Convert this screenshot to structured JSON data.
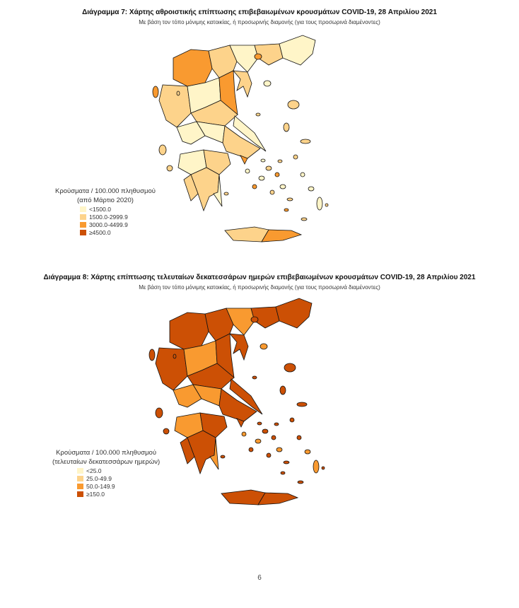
{
  "figure7": {
    "title": "Διάγραμμα 7: Χάρτης αθροιστικής επίπτωσης επιβεβαιωμένων κρουσμάτων COVID-19, 28 Απριλίου 2021",
    "subtitle": "Με βάση τον τόπο μόνιμης κατοικίας, ή προσωρινής διαμονής (για τους προσωρινά διαμένοντες)",
    "legend": {
      "title": "Κρούσματα / 100.000 πληθυσμού",
      "subtitle": "(από Μάρτιο 2020)",
      "items": [
        {
          "label": "<1500.0",
          "color": "#fff5c8"
        },
        {
          "label": "1500.0-2999.9",
          "color": "#fdd38b"
        },
        {
          "label": "3000.0-4499.9",
          "color": "#f99a30"
        },
        {
          "label": "≥4500.0",
          "color": "#cc5005"
        }
      ]
    },
    "region_levels": [
      2,
      1,
      0,
      1,
      0,
      1,
      1,
      0,
      2,
      1,
      0,
      0,
      1,
      0,
      0,
      1,
      1,
      1,
      0,
      1,
      2,
      2
    ]
  },
  "figure8": {
    "title": "Διάγραμμα 8: Χάρτης επίπτωσης τελευταίων δεκατεσσάρων ημερών επιβεβαιωμένων κρουσμάτων COVID-19, 28 Απριλίου 2021",
    "subtitle": "Με βάση τον τόπο μόνιμης κατοικίας, ή προσωρινής διαμονής (για τους προσωρινά διαμένοντες)",
    "legend": {
      "title": "Κρούσματα / 100.000 πληθυσμού",
      "subtitle": "(τελευταίων δεκατεσσάρων ημερών)",
      "items": [
        {
          "label": "<25.0",
          "color": "#fff5c8"
        },
        {
          "label": "25.0-49.9",
          "color": "#fdd38b"
        },
        {
          "label": "50.0-149.9",
          "color": "#f99a30"
        },
        {
          "label": "≥150.0",
          "color": "#cc5005"
        }
      ]
    },
    "region_levels": [
      3,
      3,
      2,
      3,
      3,
      3,
      3,
      2,
      3,
      3,
      2,
      2,
      3,
      3,
      2,
      3,
      3,
      3,
      2,
      3,
      3,
      3
    ]
  },
  "page_number": "6"
}
